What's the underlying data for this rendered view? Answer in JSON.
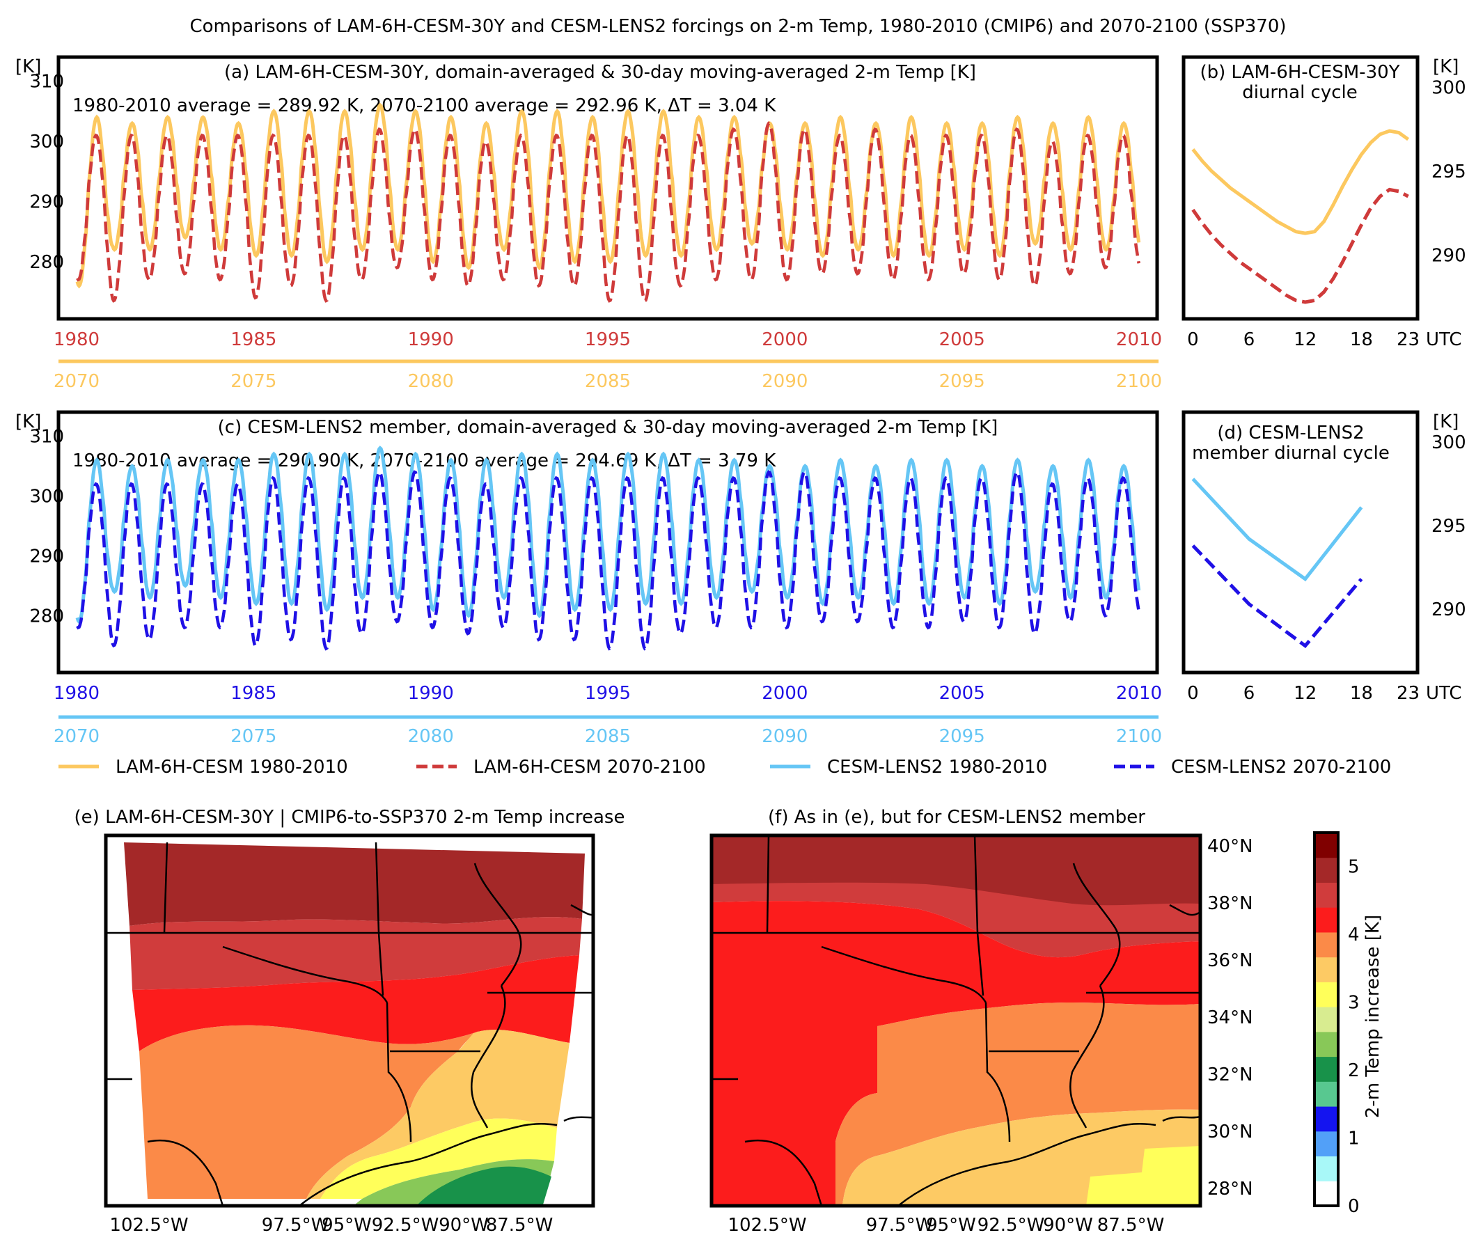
{
  "figure": {
    "title": "Comparisons of LAM-6H-CESM-30Y and CESM-LENS2 forcings on 2-m Temp, 1980-2010 (CMIP6) and 2070-2100 (SSP370)"
  },
  "colors": {
    "lam_hist": "#fcc85f",
    "lam_fut": "#cf3a3a",
    "lens_hist": "#65c6f5",
    "lens_fut": "#1f10e6"
  },
  "legend": {
    "items": [
      {
        "label": "LAM-6H-CESM 1980-2010",
        "style": "solid",
        "color_key": "lam_hist"
      },
      {
        "label": "LAM-6H-CESM 2070-2100",
        "style": "dashed",
        "color_key": "lam_fut"
      },
      {
        "label": "CESM-LENS2 1980-2010",
        "style": "solid",
        "color_key": "lens_hist"
      },
      {
        "label": "CESM-LENS2 2070-2100",
        "style": "dashed",
        "color_key": "lens_fut"
      }
    ]
  },
  "chart_data": [
    {
      "id": "a",
      "type": "line",
      "title": "(a) LAM-6H-CESM-30Y, domain-averaged & 30-day moving-averaged 2-m Temp [K]",
      "annotation": "1980-2010 average = 289.92 K, 2070-2100 average = 292.96 K, ΔT = 3.04 K",
      "ylabel": "[K]",
      "ylim": [
        270.5,
        314
      ],
      "yticks": [
        280,
        290,
        300,
        310
      ],
      "xlim": [
        1980,
        2010
      ],
      "xticks_hist": [
        "1980",
        "1985",
        "1990",
        "1995",
        "2000",
        "2005",
        "2010"
      ],
      "xticks_fut": [
        "2070",
        "2075",
        "2080",
        "2085",
        "2090",
        "2095",
        "2100"
      ],
      "series": [
        {
          "name": "LAM-6H-CESM 1980-2010",
          "color_key": "lam_hist",
          "style": "solid",
          "annual_max": [
            304,
            303,
            304,
            304,
            303,
            305,
            305,
            305,
            306,
            305,
            304,
            303,
            305,
            305,
            304,
            305,
            305,
            304,
            304,
            303,
            303,
            304,
            303,
            304,
            303,
            303,
            304,
            303,
            304,
            303
          ],
          "annual_min": [
            276,
            282,
            282,
            284,
            282,
            281,
            281,
            280,
            282,
            282,
            280,
            279,
            282,
            279,
            280,
            280,
            281,
            281,
            282,
            283,
            282,
            281,
            282,
            281,
            281,
            282,
            281,
            283,
            282,
            282
          ]
        },
        {
          "name": "LAM-6H-CESM 2070-2100",
          "color_key": "lam_fut",
          "style": "dashed",
          "annual_max": [
            301,
            301,
            301,
            301,
            301,
            301,
            301,
            301,
            302,
            302,
            301,
            300,
            301,
            301,
            301,
            301,
            301,
            301,
            302,
            303,
            302,
            301,
            302,
            301,
            301,
            301,
            302,
            300,
            301,
            301
          ],
          "annual_min": [
            277,
            273.5,
            277,
            278,
            277,
            274,
            276,
            273.5,
            277,
            279,
            277,
            276,
            277,
            276,
            276,
            273.5,
            273.5,
            276,
            277,
            277,
            277,
            278,
            278,
            277,
            277,
            278,
            277,
            276,
            278,
            279
          ]
        }
      ]
    },
    {
      "id": "b",
      "type": "line",
      "title": "(b) LAM-6H-CESM-30Y diurnal cycle",
      "ylabel": "[K]",
      "ylim": [
        286.2,
        301.8
      ],
      "yticks": [
        290,
        295,
        300
      ],
      "xlim": [
        -1,
        24
      ],
      "xticks": [
        "0",
        "6",
        "12",
        "18",
        "23"
      ],
      "xunit": "UTC",
      "x": [
        0,
        1,
        2,
        3,
        4,
        5,
        6,
        7,
        8,
        9,
        10,
        11,
        12,
        13,
        14,
        15,
        16,
        17,
        18,
        19,
        20,
        21,
        22,
        23
      ],
      "series": [
        {
          "name": "LAM-6H-CESM 1980-2010",
          "color_key": "lam_hist",
          "style": "solid",
          "values": [
            296.3,
            295.6,
            295.0,
            294.5,
            294.0,
            293.6,
            293.2,
            292.8,
            292.4,
            292.0,
            291.7,
            291.4,
            291.3,
            291.4,
            292.0,
            293.0,
            294.1,
            295.1,
            296.0,
            296.7,
            297.2,
            297.4,
            297.3,
            296.9
          ]
        },
        {
          "name": "LAM-6H-CESM 2070-2100",
          "color_key": "lam_fut",
          "style": "dashed",
          "values": [
            292.7,
            291.9,
            291.2,
            290.6,
            290.1,
            289.6,
            289.2,
            288.8,
            288.4,
            288.0,
            287.6,
            287.3,
            287.2,
            287.3,
            287.8,
            288.6,
            289.6,
            290.7,
            291.8,
            292.8,
            293.5,
            293.9,
            293.8,
            293.5
          ]
        }
      ]
    },
    {
      "id": "c",
      "type": "line",
      "title": "(c) CESM-LENS2 member, domain-averaged & 30-day moving-averaged 2-m Temp [K]",
      "annotation": "1980-2010 average = 290.90 K, 2070-2100 average = 294.69 K, ΔT = 3.79 K",
      "ylabel": "[K]",
      "ylim": [
        270.5,
        314
      ],
      "yticks": [
        280,
        290,
        300,
        310
      ],
      "xlim": [
        1980,
        2010
      ],
      "xticks_hist": [
        "1980",
        "1985",
        "1990",
        "1995",
        "2000",
        "2005",
        "2010"
      ],
      "xticks_fut": [
        "2070",
        "2075",
        "2080",
        "2085",
        "2090",
        "2095",
        "2100"
      ],
      "series": [
        {
          "name": "CESM-LENS2 1980-2010",
          "color_key": "lens_hist",
          "style": "solid",
          "annual_max": [
            306,
            305,
            306,
            306,
            306,
            307,
            307,
            307,
            308,
            307,
            306,
            306,
            307,
            307,
            306,
            307,
            307,
            306,
            306,
            305,
            305,
            306,
            305,
            306,
            306,
            305,
            306,
            305,
            306,
            305
          ],
          "annual_min": [
            279,
            284,
            283,
            285,
            283,
            282,
            282,
            281,
            283,
            283,
            281,
            280,
            283,
            280,
            281,
            281,
            282,
            282,
            283,
            284,
            283,
            282,
            283,
            282,
            282,
            283,
            282,
            284,
            283,
            283
          ]
        },
        {
          "name": "CESM-LENS2 2070-2100",
          "color_key": "lens_fut",
          "style": "dashed",
          "annual_max": [
            302,
            302,
            302,
            302,
            302,
            303,
            303,
            303,
            304,
            304,
            303,
            302,
            303,
            303,
            303,
            303,
            303,
            303,
            303,
            304,
            304,
            303,
            303,
            303,
            303,
            303,
            304,
            302,
            303,
            303
          ],
          "annual_min": [
            278,
            275,
            276,
            278,
            278,
            275,
            276,
            274.5,
            277,
            279,
            278,
            277,
            278,
            276,
            276,
            274.5,
            274.5,
            277,
            278,
            278,
            278,
            279,
            279,
            278,
            278,
            279,
            278,
            277,
            279,
            280
          ]
        }
      ]
    },
    {
      "id": "d",
      "type": "line",
      "title": "(d) CESM-LENS2 member diurnal cycle",
      "ylabel": "[K]",
      "ylim": [
        286.2,
        301.8
      ],
      "yticks": [
        290,
        295,
        300
      ],
      "xlim": [
        -1,
        24
      ],
      "xticks": [
        "0",
        "6",
        "12",
        "18",
        "23"
      ],
      "xunit": "UTC",
      "x": [
        0,
        6,
        12,
        18
      ],
      "series": [
        {
          "name": "CESM-LENS2 1980-2010",
          "color_key": "lens_hist",
          "style": "solid",
          "values": [
            297.8,
            294.2,
            291.8,
            296.1
          ]
        },
        {
          "name": "CESM-LENS2 2070-2100",
          "color_key": "lens_fut",
          "style": "dashed",
          "values": [
            293.8,
            290.3,
            287.8,
            291.8
          ]
        }
      ]
    },
    {
      "id": "e",
      "type": "heatmap",
      "title": "(e) LAM-6H-CESM-30Y | CMIP6-to-SSP370 2-m Temp increase",
      "xticks": [
        "102.5°W",
        "97.5°W",
        "95°W",
        "92.5°W",
        "90°W",
        "87.5°W"
      ],
      "regions_K": [
        {
          "band": "north",
          "value": 4.75
        },
        {
          "band": "north-central",
          "value": 4.25
        },
        {
          "band": "central",
          "value": 3.75
        },
        {
          "band": "south-central",
          "value": 3.25
        },
        {
          "band": "southeast",
          "value": 2.75
        },
        {
          "band": "gulf-coast",
          "value": 2.25
        },
        {
          "band": "far-southeast",
          "value": 1.75
        }
      ]
    },
    {
      "id": "f",
      "type": "heatmap",
      "title": "(f) As in (e), but for CESM-LENS2 member",
      "xticks": [
        "102.5°W",
        "97.5°W",
        "95°W",
        "92.5°W",
        "90°W",
        "87.5°W"
      ],
      "yticks": [
        "40°N",
        "38°N",
        "36°N",
        "34°N",
        "32°N",
        "30°N",
        "28°N"
      ],
      "regions_K": [
        {
          "band": "north",
          "value": 4.75
        },
        {
          "band": "north-central",
          "value": 4.25
        },
        {
          "band": "central",
          "value": 3.75
        },
        {
          "band": "south-central",
          "value": 3.25
        },
        {
          "band": "gulf-coast",
          "value": 2.75
        }
      ]
    }
  ],
  "colorbar": {
    "label": "2-m Temp increase [K]",
    "ticks": [
      "0",
      "1",
      "2",
      "3",
      "4",
      "5"
    ],
    "range": [
      0,
      5.5
    ],
    "colors": [
      "#ffffff",
      "#a8f8f8",
      "#52a0f8",
      "#1414f0",
      "#58c890",
      "#18924a",
      "#88c858",
      "#d8ec90",
      "#ffff5a",
      "#fdca64",
      "#fb8a48",
      "#fc1c1c",
      "#d03c3c",
      "#a42828",
      "#800000"
    ]
  }
}
